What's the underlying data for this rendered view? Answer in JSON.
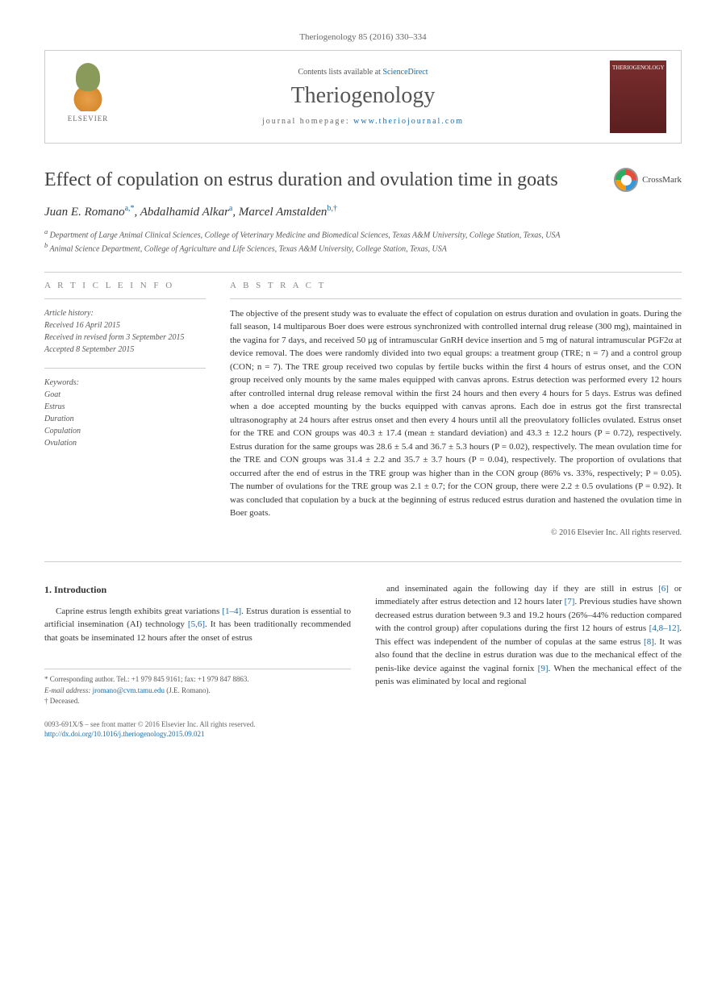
{
  "header": {
    "citation": "Theriogenology 85 (2016) 330–334",
    "contents_prefix": "Contents lists available at ",
    "contents_link": "ScienceDirect",
    "journal": "Theriogenology",
    "homepage_prefix": "journal homepage: ",
    "homepage_url": "www.theriojournal.com",
    "publisher": "ELSEVIER",
    "cover_label": "THERIOGENOLOGY"
  },
  "article": {
    "title": "Effect of copulation on estrus duration and ovulation time in goats",
    "crossmark": "CrossMark",
    "authors_html": "Juan E. Romano",
    "author1": {
      "name": "Juan E. Romano",
      "affil": "a,",
      "mark": "*"
    },
    "author2": {
      "name": "Abdalhamid Alkar",
      "affil": "a"
    },
    "author3": {
      "name": "Marcel Amstalden",
      "affil": "b,",
      "mark": "†"
    },
    "affiliations": {
      "a": "Department of Large Animal Clinical Sciences, College of Veterinary Medicine and Biomedical Sciences, Texas A&M University, College Station, Texas, USA",
      "b": "Animal Science Department, College of Agriculture and Life Sciences, Texas A&M University, College Station, Texas, USA"
    }
  },
  "info": {
    "heading": "A R T I C L E   I N F O",
    "history_label": "Article history:",
    "received": "Received 16 April 2015",
    "revised": "Received in revised form 3 September 2015",
    "accepted": "Accepted 8 September 2015",
    "keywords_label": "Keywords:",
    "keywords": [
      "Goat",
      "Estrus",
      "Duration",
      "Copulation",
      "Ovulation"
    ]
  },
  "abstract": {
    "heading": "A B S T R A C T",
    "text": "The objective of the present study was to evaluate the effect of copulation on estrus duration and ovulation in goats. During the fall season, 14 multiparous Boer does were estrous synchronized with controlled internal drug release (300 mg), maintained in the vagina for 7 days, and received 50 μg of intramuscular GnRH device insertion and 5 mg of natural intramuscular PGF2α at device removal. The does were randomly divided into two equal groups: a treatment group (TRE; n = 7) and a control group (CON; n = 7). The TRE group received two copulas by fertile bucks within the first 4 hours of estrus onset, and the CON group received only mounts by the same males equipped with canvas aprons. Estrus detection was performed every 12 hours after controlled internal drug release removal within the first 24 hours and then every 4 hours for 5 days. Estrus was defined when a doe accepted mounting by the bucks equipped with canvas aprons. Each doe in estrus got the first transrectal ultrasonography at 24 hours after estrus onset and then every 4 hours until all the preovulatory follicles ovulated. Estrus onset for the TRE and CON groups was 40.3 ± 17.4 (mean ± standard deviation) and 43.3 ± 12.2 hours (P = 0.72), respectively. Estrus duration for the same groups was 28.6 ± 5.4 and 36.7 ± 5.3 hours (P = 0.02), respectively. The mean ovulation time for the TRE and CON groups was 31.4 ± 2.2 and 35.7 ± 3.7 hours (P = 0.04), respectively. The proportion of ovulations that occurred after the end of estrus in the TRE group was higher than in the CON group (86% vs. 33%, respectively; P = 0.05). The number of ovulations for the TRE group was 2.1 ± 0.7; for the CON group, there were 2.2 ± 0.5 ovulations (P = 0.92). It was concluded that copulation by a buck at the beginning of estrus reduced estrus duration and hastened the ovulation time in Boer goats.",
    "copyright": "© 2016 Elsevier Inc. All rights reserved."
  },
  "body": {
    "section_num": "1.",
    "section_title": "Introduction",
    "col1": "Caprine estrus length exhibits great variations [1–4]. Estrus duration is essential to artificial insemination (AI) technology [5,6]. It has been traditionally recommended that goats be inseminated 12 hours after the onset of estrus",
    "col2": "and inseminated again the following day if they are still in estrus [6] or immediately after estrus detection and 12 hours later [7]. Previous studies have shown decreased estrus duration between 9.3 and 19.2 hours (26%–44% reduction compared with the control group) after copulations during the first 12 hours of estrus [4,8–12]. This effect was independent of the number of copulas at the same estrus [8]. It was also found that the decline in estrus duration was due to the mechanical effect of the penis-like device against the vaginal fornix [9]. When the mechanical effect of the penis was eliminated by local and regional"
  },
  "footnotes": {
    "corr_label": "* Corresponding author. Tel.: +1 979 845 9161; fax: +1 979 847 8863.",
    "email_label": "E-mail address:",
    "email": "jromano@cvm.tamu.edu",
    "email_suffix": "(J.E. Romano).",
    "deceased": "† Deceased."
  },
  "footer": {
    "line1": "0093-691X/$ – see front matter © 2016 Elsevier Inc. All rights reserved.",
    "doi": "http://dx.doi.org/10.1016/j.theriogenology.2015.09.021"
  },
  "colors": {
    "link": "#1a6ba8",
    "text": "#333333",
    "muted": "#666666",
    "border": "#cccccc",
    "cover_bg": "#7a2d2d"
  }
}
